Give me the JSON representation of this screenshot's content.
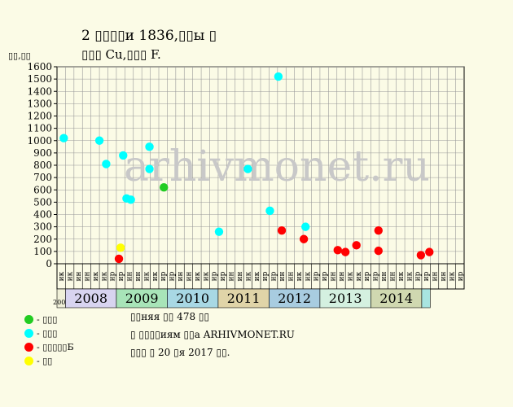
{
  "title": {
    "line1": "2 ▯▯▯▯и 1836,▯▯ы ▯",
    "line2": "▯▯▯ Cu,▯▯▯ F."
  },
  "ylabel": "▯▯,▯▯",
  "watermark": "arhivmonet.ru",
  "colors": {
    "background": "#fbfbe6",
    "plot_bg": "#fbfbe6",
    "green": "#22cc22",
    "cyan": "#00ffff",
    "red": "#ff0000",
    "yellow": "#ffff00",
    "grid": "#999999",
    "watermark": "#c8c8c8"
  },
  "legend": [
    {
      "color": "green",
      "label": "- ▯▯▯"
    },
    {
      "color": "cyan",
      "label": "- ▯▯▯"
    },
    {
      "color": "red",
      "label": "- ▯▯▯▯▯Б"
    },
    {
      "color": "yellow",
      "label": "- ▯▯"
    }
  ],
  "notes": [
    "▯▯няя ▯▯ 478 ▯▯",
    "▯ ▯▯▯▯иям ▯▯а ARHIVMONET.RU",
    "▯▯▯ ▯ 20 ▯я 2017 ▯▯."
  ],
  "chart_data": {
    "type": "scatter",
    "ylim": [
      0,
      1600
    ],
    "yticks": [
      0,
      100,
      200,
      300,
      400,
      500,
      600,
      700,
      800,
      900,
      1000,
      1100,
      1200,
      1300,
      1400,
      1500,
      1600
    ],
    "grid": true,
    "months": [
      "ик",
      "ик",
      "ин",
      "ин",
      "ик",
      "ик",
      "ир",
      "ир",
      "ин",
      "ин",
      "ик",
      "ик",
      "ир",
      "ир",
      "ин",
      "ин",
      "ик",
      "ик",
      "ир",
      "ир",
      "ин",
      "ин",
      "ик",
      "ик",
      "ир",
      "ир",
      "ин",
      "ин",
      "ик",
      "ик",
      "ир",
      "ир",
      "ин",
      "ин",
      "ик",
      "ик",
      "ир",
      "ир",
      "ин",
      "ин",
      "ик",
      "ик",
      "ир",
      "ир",
      "ин",
      "ин",
      "ик",
      "ир"
    ],
    "years": [
      {
        "label": "2007",
        "start": 0,
        "span": 1,
        "color": "#f0f0d8",
        "small": true
      },
      {
        "label": "2008",
        "start": 1,
        "span": 6,
        "color": "#d8d4f0"
      },
      {
        "label": "2009",
        "start": 7,
        "span": 6,
        "color": "#a8e4b8"
      },
      {
        "label": "2010",
        "start": 13,
        "span": 6,
        "color": "#a8d8e4"
      },
      {
        "label": "2011",
        "start": 19,
        "span": 6,
        "color": "#e0d4a8"
      },
      {
        "label": "2012",
        "start": 25,
        "span": 6,
        "color": "#a8cce0"
      },
      {
        "label": "2013",
        "start": 31,
        "span": 6,
        "color": "#d4f0e0"
      },
      {
        "label": "2014",
        "start": 37,
        "span": 6,
        "color": "#d0d8b0"
      },
      {
        "label": "",
        "start": 43,
        "span": 1,
        "color": "#a8e4e0"
      }
    ],
    "points": [
      {
        "x": 0.3,
        "y": 1020,
        "c": "cyan"
      },
      {
        "x": 4.5,
        "y": 1000,
        "c": "cyan"
      },
      {
        "x": 5.3,
        "y": 810,
        "c": "cyan"
      },
      {
        "x": 6.8,
        "y": 40,
        "c": "red"
      },
      {
        "x": 7.0,
        "y": 130,
        "c": "yellow"
      },
      {
        "x": 7.3,
        "y": 880,
        "c": "cyan"
      },
      {
        "x": 7.7,
        "y": 530,
        "c": "cyan"
      },
      {
        "x": 8.2,
        "y": 520,
        "c": "cyan"
      },
      {
        "x": 10.4,
        "y": 770,
        "c": "cyan"
      },
      {
        "x": 10.4,
        "y": 950,
        "c": "cyan"
      },
      {
        "x": 12.1,
        "y": 620,
        "c": "green"
      },
      {
        "x": 18.6,
        "y": 260,
        "c": "cyan"
      },
      {
        "x": 22.0,
        "y": 770,
        "c": "cyan"
      },
      {
        "x": 24.6,
        "y": 430,
        "c": "cyan"
      },
      {
        "x": 25.6,
        "y": 1520,
        "c": "cyan"
      },
      {
        "x": 26.0,
        "y": 270,
        "c": "red"
      },
      {
        "x": 28.6,
        "y": 200,
        "c": "red"
      },
      {
        "x": 28.8,
        "y": 300,
        "c": "cyan"
      },
      {
        "x": 32.6,
        "y": 110,
        "c": "red"
      },
      {
        "x": 33.5,
        "y": 95,
        "c": "red"
      },
      {
        "x": 34.8,
        "y": 150,
        "c": "red"
      },
      {
        "x": 37.4,
        "y": 270,
        "c": "red"
      },
      {
        "x": 37.4,
        "y": 105,
        "c": "red"
      },
      {
        "x": 42.4,
        "y": 70,
        "c": "red"
      },
      {
        "x": 43.4,
        "y": 95,
        "c": "red"
      }
    ]
  }
}
